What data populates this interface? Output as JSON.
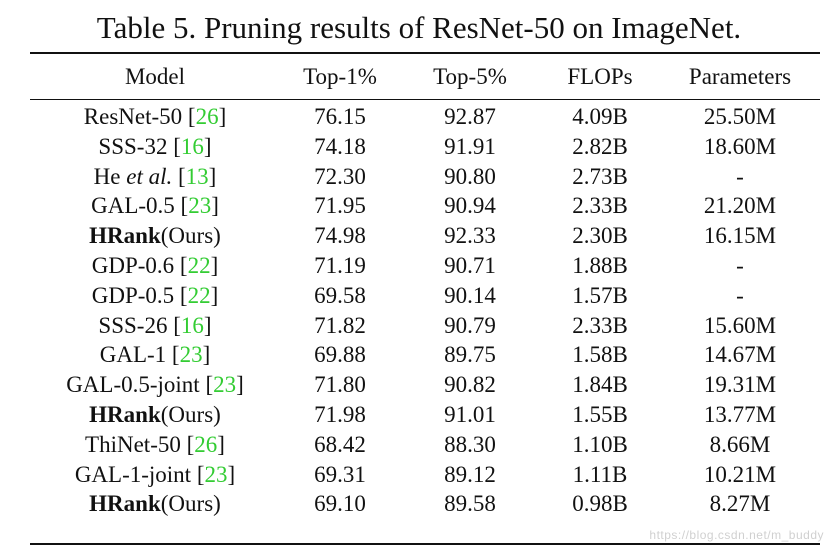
{
  "caption": "Table 5. Pruning results of ResNet-50 on ImageNet.",
  "headers": {
    "model": "Model",
    "top1": "Top-1%",
    "top5": "Top-5%",
    "flops": "FLOPs",
    "params": "Parameters"
  },
  "rows": [
    {
      "name": "ResNet-50",
      "bold_name": "",
      "italic_part": "",
      "suffix": "",
      "cite": "26",
      "top1": "76.15",
      "top5": "92.87",
      "flops": "4.09B",
      "params": "25.50M"
    },
    {
      "name": "SSS-32",
      "bold_name": "",
      "italic_part": "",
      "suffix": "",
      "cite": "16",
      "top1": "74.18",
      "top5": "91.91",
      "flops": "2.82B",
      "params": "18.60M"
    },
    {
      "name": "He",
      "bold_name": "",
      "italic_part": "et al.",
      "suffix": "",
      "cite": "13",
      "top1": "72.30",
      "top5": "90.80",
      "flops": "2.73B",
      "params": "-"
    },
    {
      "name": "GAL-0.5",
      "bold_name": "",
      "italic_part": "",
      "suffix": "",
      "cite": "23",
      "top1": "71.95",
      "top5": "90.94",
      "flops": "2.33B",
      "params": "21.20M"
    },
    {
      "name": "",
      "bold_name": "HRank",
      "italic_part": "",
      "suffix": "(Ours)",
      "cite": "",
      "top1": "74.98",
      "top5": "92.33",
      "flops": "2.30B",
      "params": "16.15M"
    },
    {
      "name": "GDP-0.6",
      "bold_name": "",
      "italic_part": "",
      "suffix": "",
      "cite": "22",
      "top1": "71.19",
      "top5": "90.71",
      "flops": "1.88B",
      "params": "-"
    },
    {
      "name": "GDP-0.5",
      "bold_name": "",
      "italic_part": "",
      "suffix": "",
      "cite": "22",
      "top1": "69.58",
      "top5": "90.14",
      "flops": "1.57B",
      "params": "-"
    },
    {
      "name": "SSS-26",
      "bold_name": "",
      "italic_part": "",
      "suffix": "",
      "cite": "16",
      "top1": "71.82",
      "top5": "90.79",
      "flops": "2.33B",
      "params": "15.60M"
    },
    {
      "name": "GAL-1",
      "bold_name": "",
      "italic_part": "",
      "suffix": "",
      "cite": "23",
      "top1": "69.88",
      "top5": "89.75",
      "flops": "1.58B",
      "params": "14.67M"
    },
    {
      "name": "GAL-0.5-joint",
      "bold_name": "",
      "italic_part": "",
      "suffix": "",
      "cite": "23",
      "top1": "71.80",
      "top5": "90.82",
      "flops": "1.84B",
      "params": "19.31M"
    },
    {
      "name": "",
      "bold_name": "HRank",
      "italic_part": "",
      "suffix": "(Ours)",
      "cite": "",
      "top1": "71.98",
      "top5": "91.01",
      "flops": "1.55B",
      "params": "13.77M"
    },
    {
      "name": "ThiNet-50",
      "bold_name": "",
      "italic_part": "",
      "suffix": "",
      "cite": "26",
      "top1": "68.42",
      "top5": "88.30",
      "flops": "1.10B",
      "params": "8.66M"
    },
    {
      "name": "GAL-1-joint",
      "bold_name": "",
      "italic_part": "",
      "suffix": "",
      "cite": "23",
      "top1": "69.31",
      "top5": "89.12",
      "flops": "1.11B",
      "params": "10.21M"
    },
    {
      "name": "",
      "bold_name": "HRank",
      "italic_part": "",
      "suffix": "(Ours)",
      "cite": "",
      "top1": "69.10",
      "top5": "89.58",
      "flops": "0.98B",
      "params": "8.27M"
    }
  ],
  "watermark": "https://blog.csdn.net/m_buddy",
  "colors": {
    "cite": "#33cc33",
    "text": "#111111"
  }
}
